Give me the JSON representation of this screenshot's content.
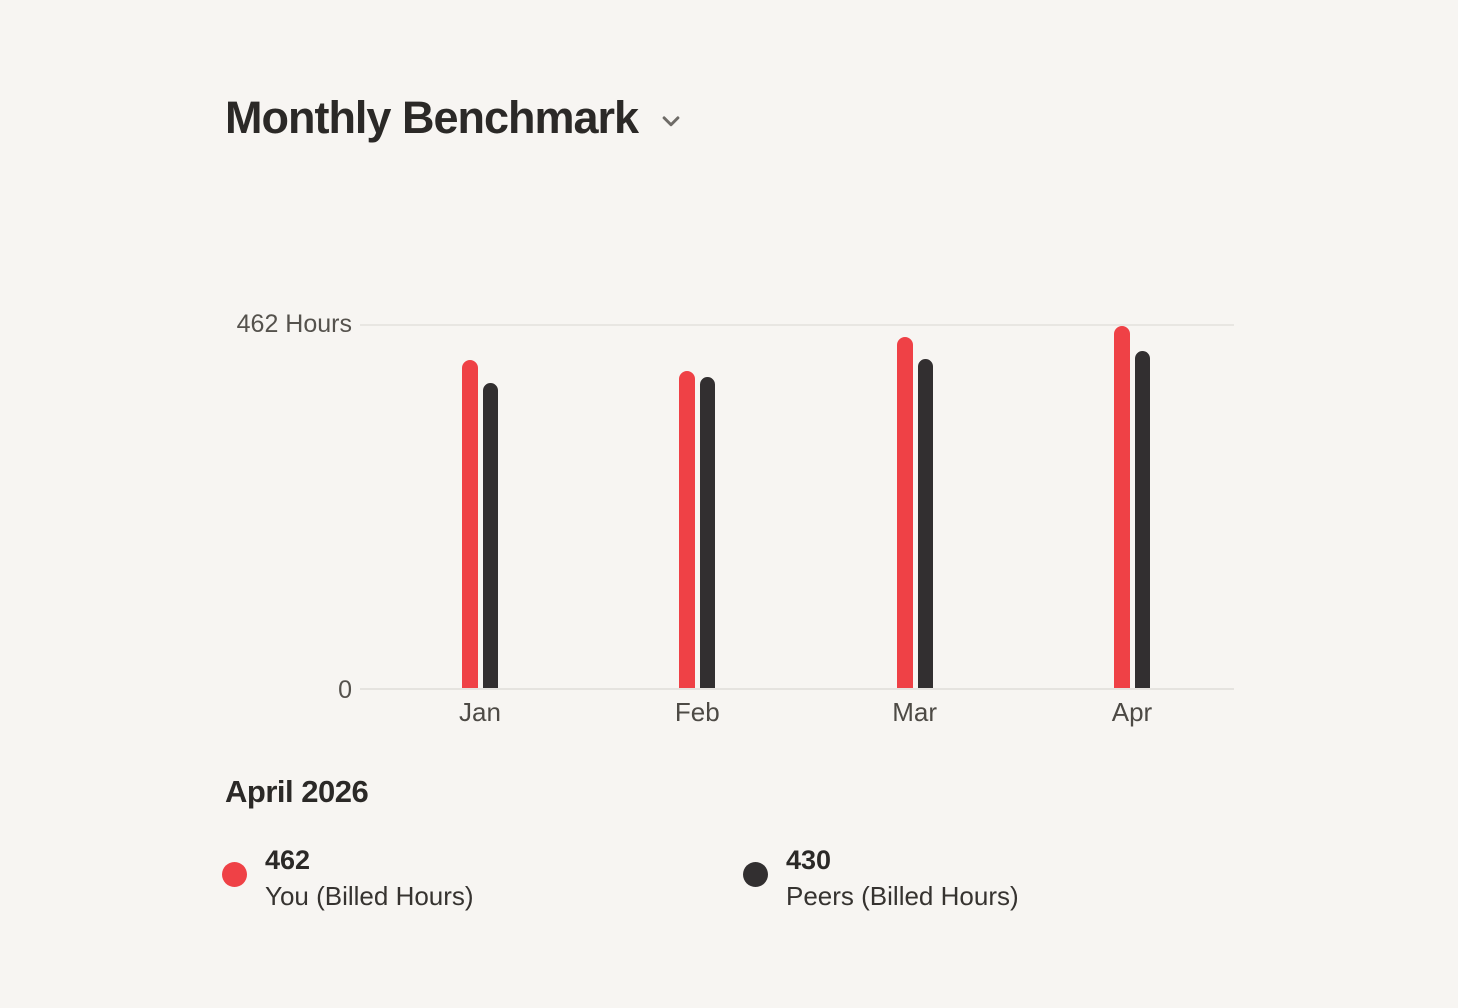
{
  "header": {
    "title": "Monthly Benchmark",
    "dropdown_icon": "chevron-down-icon"
  },
  "chart_data": {
    "type": "bar",
    "title": "Monthly Benchmark",
    "categories": [
      "Jan",
      "Feb",
      "Mar",
      "Apr"
    ],
    "series": [
      {
        "name": "You (Billed Hours)",
        "color": "#ef4146",
        "values": [
          419,
          404,
          448,
          462
        ]
      },
      {
        "name": "Peers (Billed Hours)",
        "color": "#322f30",
        "values": [
          389,
          397,
          420,
          430
        ]
      }
    ],
    "ylim": [
      0,
      462
    ],
    "y_axis": {
      "max_label": "462 Hours",
      "min_label": "0"
    },
    "grid": "single top gridline at 462 plus zero baseline",
    "legend_position": "below-chart"
  },
  "summary": {
    "title": "April 2026",
    "legend": [
      {
        "value": "462",
        "label": "You (Billed Hours)",
        "color": "#ef4146",
        "dot_icon": "legend-dot-you"
      },
      {
        "value": "430",
        "label": "Peers (Billed Hours)",
        "color": "#322f30",
        "dot_icon": "legend-dot-peers"
      }
    ]
  },
  "colors": {
    "background": "#f7f5f2",
    "accent_red": "#ef4146",
    "accent_dark": "#322f30",
    "text_primary": "#2b2927",
    "text_secondary": "#55524d",
    "gridline": "#e8e6e2"
  }
}
